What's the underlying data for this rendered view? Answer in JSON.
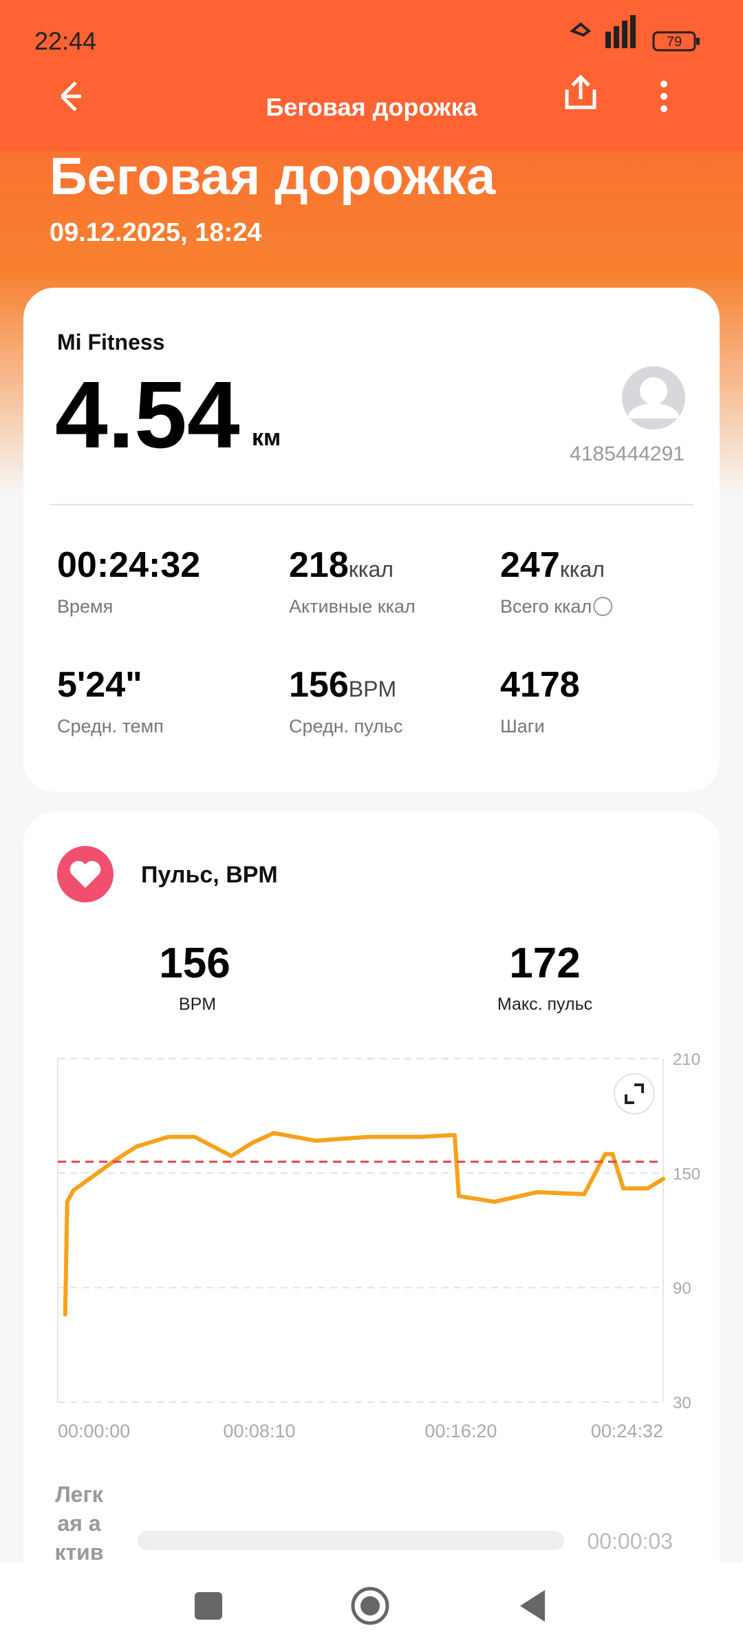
{
  "status_bar": {
    "time": "22:44",
    "battery": "79"
  },
  "toolbar": {
    "title": "Беговая дорожка"
  },
  "header": {
    "title": "Беговая дорожка",
    "date": "09.12.2025, 18:24"
  },
  "summary": {
    "source": "Mi Fitness",
    "distance": "4.54",
    "distance_unit": "км",
    "user_id": "4185444291",
    "stats": [
      {
        "value": "00:24:32",
        "unit": "",
        "label": "Время"
      },
      {
        "value": "218",
        "unit": "ккал",
        "label": "Активные ккал"
      },
      {
        "value": "247",
        "unit": "ккал",
        "label": "Всего ккал"
      },
      {
        "value": "5'24\"",
        "unit": "",
        "label": "Средн. темп"
      },
      {
        "value": "156",
        "unit": "BPM",
        "label": "Средн. пульс"
      },
      {
        "value": "4178",
        "unit": "",
        "label": "Шаги"
      }
    ]
  },
  "heart": {
    "title": "Пульс, BPM",
    "avg_value": "156",
    "avg_label": "BPM",
    "max_value": "172",
    "max_label": "Макс. пульс",
    "zone": {
      "label": "Легкая актив",
      "time": "00:00:03"
    }
  },
  "chart_data": {
    "type": "line",
    "x": [
      18,
      23,
      38,
      90,
      141,
      192,
      269,
      333,
      422,
      474,
      525,
      627,
      755,
      883,
      965,
      975,
      1062,
      1165,
      1280,
      1331,
      1349,
      1375,
      1434,
      1472
    ],
    "series": [
      {
        "color": "#f7a21b",
        "values": [
          76,
          135,
          141,
          149,
          157,
          164,
          169,
          169,
          159,
          166,
          171,
          167,
          169,
          169,
          170,
          138,
          135,
          140,
          139,
          160,
          160,
          142,
          142,
          147
        ]
      }
    ],
    "xlim": [
      0,
      1472
    ],
    "xticks": [
      {
        "value": 0,
        "label": "00:00:00"
      },
      {
        "value": 490,
        "label": "00:08:10"
      },
      {
        "value": 980,
        "label": "00:16:20"
      },
      {
        "value": 1472,
        "label": "00:24:32"
      }
    ],
    "ylim": [
      30,
      210
    ],
    "yticks": [
      30,
      90,
      150,
      210
    ],
    "grid": true,
    "avg_line": 156,
    "avg_color": "#e8404c"
  }
}
